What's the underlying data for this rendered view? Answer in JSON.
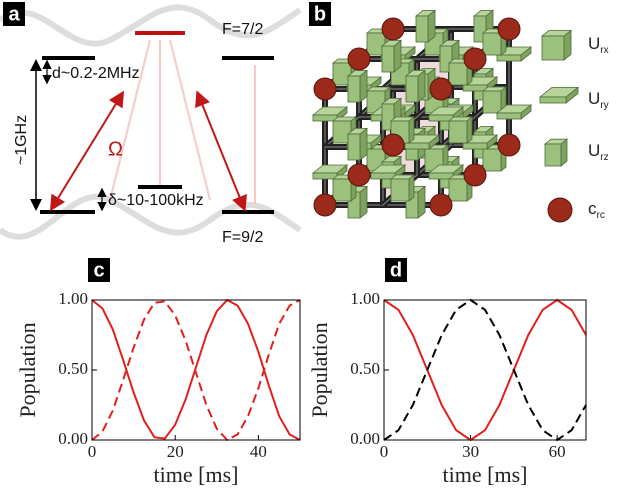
{
  "panel_labels": [
    "a",
    "b"
  ],
  "level_diagram": {
    "upper_manifold": "F=7/2",
    "lower_manifold": "F=9/2",
    "upper_splitting": "d~0.2-2MHz",
    "gap": "~1GHz",
    "rabi": "Ω",
    "lower_splitting": "δ~10-100kHz"
  },
  "lattice_legend": [
    {
      "main": "U",
      "sub": "rx"
    },
    {
      "main": "U",
      "sub": "ry"
    },
    {
      "main": "U",
      "sub": "rz"
    },
    {
      "main": "c",
      "sub": "rc"
    }
  ],
  "chart_data": [
    {
      "type": "line",
      "panel": "c",
      "x_label": "time [ms]",
      "y_label": "Population",
      "x": [
        0,
        2.5,
        5,
        7.5,
        10,
        12.5,
        15,
        17.5,
        20,
        22.5,
        25,
        27.5,
        30,
        32.5,
        35,
        37.5,
        40,
        42.5,
        45,
        47.5,
        50
      ],
      "series": [
        {
          "color": "#e0201e",
          "style": "solid",
          "values": [
            1.0,
            0.94,
            0.79,
            0.57,
            0.34,
            0.14,
            0.02,
            0.01,
            0.11,
            0.29,
            0.52,
            0.75,
            0.92,
            1.0,
            0.96,
            0.83,
            0.63,
            0.39,
            0.17,
            0.04,
            0.0
          ]
        },
        {
          "color": "#e0201e",
          "style": "dashed",
          "values": [
            0.0,
            0.06,
            0.21,
            0.43,
            0.66,
            0.86,
            0.98,
            0.99,
            0.89,
            0.71,
            0.48,
            0.25,
            0.08,
            0.0,
            0.04,
            0.17,
            0.37,
            0.61,
            0.83,
            0.96,
            1.0
          ]
        }
      ],
      "xlim": [
        0,
        50
      ],
      "xticks": [
        0,
        20,
        40
      ],
      "ylim": [
        0,
        1
      ],
      "yticks": [
        {
          "value": 0,
          "label": "0.00"
        },
        {
          "value": 0.5,
          "label": "0.50"
        },
        {
          "value": 1,
          "label": "1.00"
        }
      ]
    },
    {
      "type": "line",
      "panel": "d",
      "x_label": "time [ms]",
      "y_label": "Population",
      "x": [
        0,
        5,
        10,
        15,
        20,
        25,
        30,
        35,
        40,
        45,
        50,
        55,
        60,
        65,
        70
      ],
      "series": [
        {
          "color": "#e0201e",
          "style": "solid",
          "values": [
            1.0,
            0.93,
            0.75,
            0.5,
            0.25,
            0.07,
            0.0,
            0.07,
            0.25,
            0.5,
            0.75,
            0.93,
            1.0,
            0.93,
            0.75
          ]
        },
        {
          "color": "#000000",
          "style": "dashed",
          "values": [
            0.0,
            0.07,
            0.25,
            0.5,
            0.75,
            0.93,
            1.0,
            0.93,
            0.75,
            0.5,
            0.25,
            0.07,
            0.0,
            0.07,
            0.25
          ]
        }
      ],
      "xlim": [
        0,
        70
      ],
      "xticks": [
        0,
        30,
        60
      ],
      "ylim": [
        0,
        1
      ],
      "yticks": [
        {
          "value": 0,
          "label": "0.00"
        },
        {
          "value": 0.5,
          "label": "0.50"
        },
        {
          "value": 1,
          "label": "1.00"
        }
      ]
    }
  ]
}
